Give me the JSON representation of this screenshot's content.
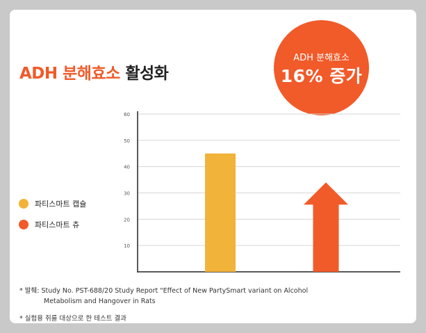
{
  "title": {
    "accent": "ADH 분해효소",
    "rest": "활성화"
  },
  "badge": {
    "line1": "ADH 분해효소",
    "line2": "16% 증가"
  },
  "legend": [
    {
      "label": "파티스마트 캡슐",
      "color": "#f2b33a"
    },
    {
      "label": "파티스마트 츄",
      "color": "#f15a29"
    }
  ],
  "chart_data": {
    "type": "bar",
    "title": "ADH 분해효소 활성화",
    "categories": [
      "",
      ""
    ],
    "series": [
      {
        "name": "파티스마트 캡슐",
        "values": [
          45,
          null
        ],
        "color": "#f2b33a",
        "mark": "bar"
      },
      {
        "name": "파티스마트 츄",
        "values": [
          null,
          34
        ],
        "color": "#f15a29",
        "mark": "arrow"
      }
    ],
    "yticks": [
      10,
      20,
      30,
      40,
      50,
      60
    ],
    "ylim": [
      0,
      60
    ],
    "xlabel": "",
    "ylabel": "",
    "grid": true,
    "legend_position": "left"
  },
  "footnotes": {
    "source_line1": "* 발췌: Study No. PST-688/20  Study Report \"Effect of New PartySmart variant on Alcohol",
    "source_line2": "Metabolism and Hangover in Rats",
    "experiment": "* 실험용 쥐를 대상으로 한 테스트 결과"
  },
  "colors": {
    "accent": "#f15a29",
    "gold": "#f2b33a",
    "background": "#c9c9c9",
    "card": "#ffffff"
  }
}
